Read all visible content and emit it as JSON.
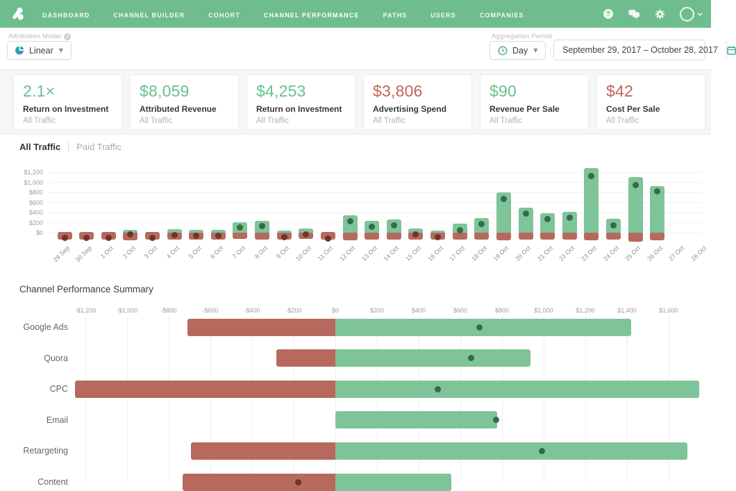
{
  "nav": {
    "logo": "attribution-logo",
    "items": [
      {
        "label": "DASHBOARD",
        "active": false
      },
      {
        "label": "CHANNEL BUILDER",
        "active": false
      },
      {
        "label": "COHORT",
        "active": false
      },
      {
        "label": "CHANNEL PERFORMANCE",
        "active": true
      },
      {
        "label": "PATHS",
        "active": false
      },
      {
        "label": "USERS",
        "active": false
      },
      {
        "label": "COMPANIES",
        "active": false
      }
    ],
    "right_icons": [
      "help-icon",
      "chat-icon",
      "gear-icon"
    ],
    "help_glyph": "?"
  },
  "controls": {
    "attribution_model": {
      "label": "Attribution Model",
      "value": "Linear"
    },
    "aggregation_period": {
      "label": "Aggregation Period",
      "value": "Day"
    },
    "separator": ":",
    "date_range": "September 29, 2017  –  October 28, 2017"
  },
  "kpi_cards": [
    {
      "value": "2.1×",
      "label": "Return on Investment",
      "sublabel": "All Traffic",
      "color": "#66c18e"
    },
    {
      "value": "$8,059",
      "label": "Attributed Revenue",
      "sublabel": "All Traffic",
      "color": "#66c18e"
    },
    {
      "value": "$4,253",
      "label": "Return on Investment",
      "sublabel": "All Traffic",
      "color": "#66c18e"
    },
    {
      "value": "$3,806",
      "label": "Advertising Spend",
      "sublabel": "All Traffic",
      "color": "#c4635a"
    },
    {
      "value": "$90",
      "label": "Revenue Per Sale",
      "sublabel": "All Traffic",
      "color": "#66c18e"
    },
    {
      "value": "$42",
      "label": "Cost Per Sale",
      "sublabel": "All Traffic",
      "color": "#c4635a"
    }
  ],
  "traffic_tabs": [
    {
      "label": "All Traffic",
      "active": true
    },
    {
      "label": "Paid Traffic",
      "active": false
    }
  ],
  "chart_data": [
    {
      "type": "bar",
      "name": "daily-channel-performance",
      "title": "",
      "categories": [
        "29 Sep",
        "30 Sep",
        "1 Oct",
        "2 Oct",
        "3 Oct",
        "4 Oct",
        "5 Oct",
        "6 Oct",
        "7 Oct",
        "8 Oct",
        "9 Oct",
        "10 Oct",
        "11 Oct",
        "12 Oct",
        "13 Oct",
        "14 Oct",
        "15 Oct",
        "16 Oct",
        "17 Oct",
        "18 Oct",
        "19 Oct",
        "20 Oct",
        "21 Oct",
        "22 Oct",
        "23 Oct",
        "24 Oct",
        "25 Oct",
        "26 Oct",
        "27 Oct",
        "28 Oct"
      ],
      "series": [
        {
          "name": "Attributed Revenue",
          "color": "#7fc498",
          "values": [
            0,
            0,
            0,
            60,
            0,
            65,
            50,
            50,
            210,
            240,
            40,
            80,
            0,
            345,
            230,
            260,
            80,
            40,
            185,
            290,
            800,
            500,
            390,
            420,
            1280,
            270,
            1110,
            920,
            null,
            null
          ]
        },
        {
          "name": "Advertising Spend",
          "color": "#b7695e",
          "values": [
            -140,
            -140,
            -140,
            -145,
            -140,
            -140,
            -140,
            -135,
            -130,
            -135,
            -135,
            -130,
            -140,
            -145,
            -140,
            -140,
            -140,
            -140,
            -140,
            -140,
            -145,
            -140,
            -140,
            -140,
            -145,
            -140,
            -175,
            -150,
            null,
            null
          ]
        },
        {
          "name": "Profit",
          "type": "scatter",
          "values": [
            -100,
            -100,
            -100,
            -35,
            -105,
            -45,
            -60,
            -60,
            105,
            130,
            -85,
            -40,
            -115,
            225,
            115,
            145,
            -35,
            -90,
            45,
            170,
            675,
            375,
            270,
            300,
            1130,
            140,
            950,
            815,
            null,
            null
          ]
        }
      ],
      "y_ticks": [
        {
          "label": "$1,200",
          "value": 1200
        },
        {
          "label": "$1,000",
          "value": 1000
        },
        {
          "label": "$800",
          "value": 800
        },
        {
          "label": "$600",
          "value": 600
        },
        {
          "label": "$400",
          "value": 400
        },
        {
          "label": "$200",
          "value": 200
        },
        {
          "label": "$0",
          "value": 0
        }
      ],
      "ylim": [
        -200,
        1300
      ],
      "grid": "horizontal",
      "legend": "none"
    },
    {
      "type": "bar-horizontal",
      "name": "channel-performance-summary",
      "title": "Channel Performance Summary",
      "categories": [
        "Google Ads",
        "Quora",
        "CPC",
        "Email",
        "Retargeting",
        "Content"
      ],
      "series": [
        {
          "name": "Advertising Spend",
          "color": "#b7695e",
          "values": [
            -710,
            -285,
            -1250,
            0,
            -695,
            -735
          ]
        },
        {
          "name": "Attributed Revenue",
          "color": "#7fc498",
          "values": [
            1420,
            935,
            1745,
            775,
            1690,
            555
          ]
        },
        {
          "name": "Profit",
          "type": "scatter",
          "values": [
            690,
            650,
            490,
            770,
            990,
            -180
          ]
        }
      ],
      "x_ticks": [
        {
          "label": "-$1,200",
          "value": -1200
        },
        {
          "label": "-$1,000",
          "value": -1000
        },
        {
          "label": "-$800",
          "value": -800
        },
        {
          "label": "-$600",
          "value": -600
        },
        {
          "label": "-$400",
          "value": -400
        },
        {
          "label": "-$200",
          "value": -200
        },
        {
          "label": "$0",
          "value": 0
        },
        {
          "label": "$200",
          "value": 200
        },
        {
          "label": "$400",
          "value": 400
        },
        {
          "label": "$600",
          "value": 600
        },
        {
          "label": "$800",
          "value": 800
        },
        {
          "label": "$1,000",
          "value": 1000
        },
        {
          "label": "$1,200",
          "value": 1200
        },
        {
          "label": "$1,400",
          "value": 1400
        },
        {
          "label": "$1,600",
          "value": 1600
        }
      ],
      "xlim": [
        -1300,
        1800
      ],
      "grid": "vertical",
      "legend": "none"
    }
  ],
  "colors": {
    "nav_background": "#6fbd8e",
    "nav_active_underline": "#549a74",
    "bar_green": "#7fc498",
    "bar_red": "#b7695e",
    "dot_positive": "#37694d",
    "dot_negative": "#6e352c",
    "kpi_green": "#66c18e",
    "kpi_red": "#c4635a",
    "teal_icon": "#2f9fb5",
    "calendar_icon": "#2ba898",
    "clock_icon": "#54b083"
  }
}
